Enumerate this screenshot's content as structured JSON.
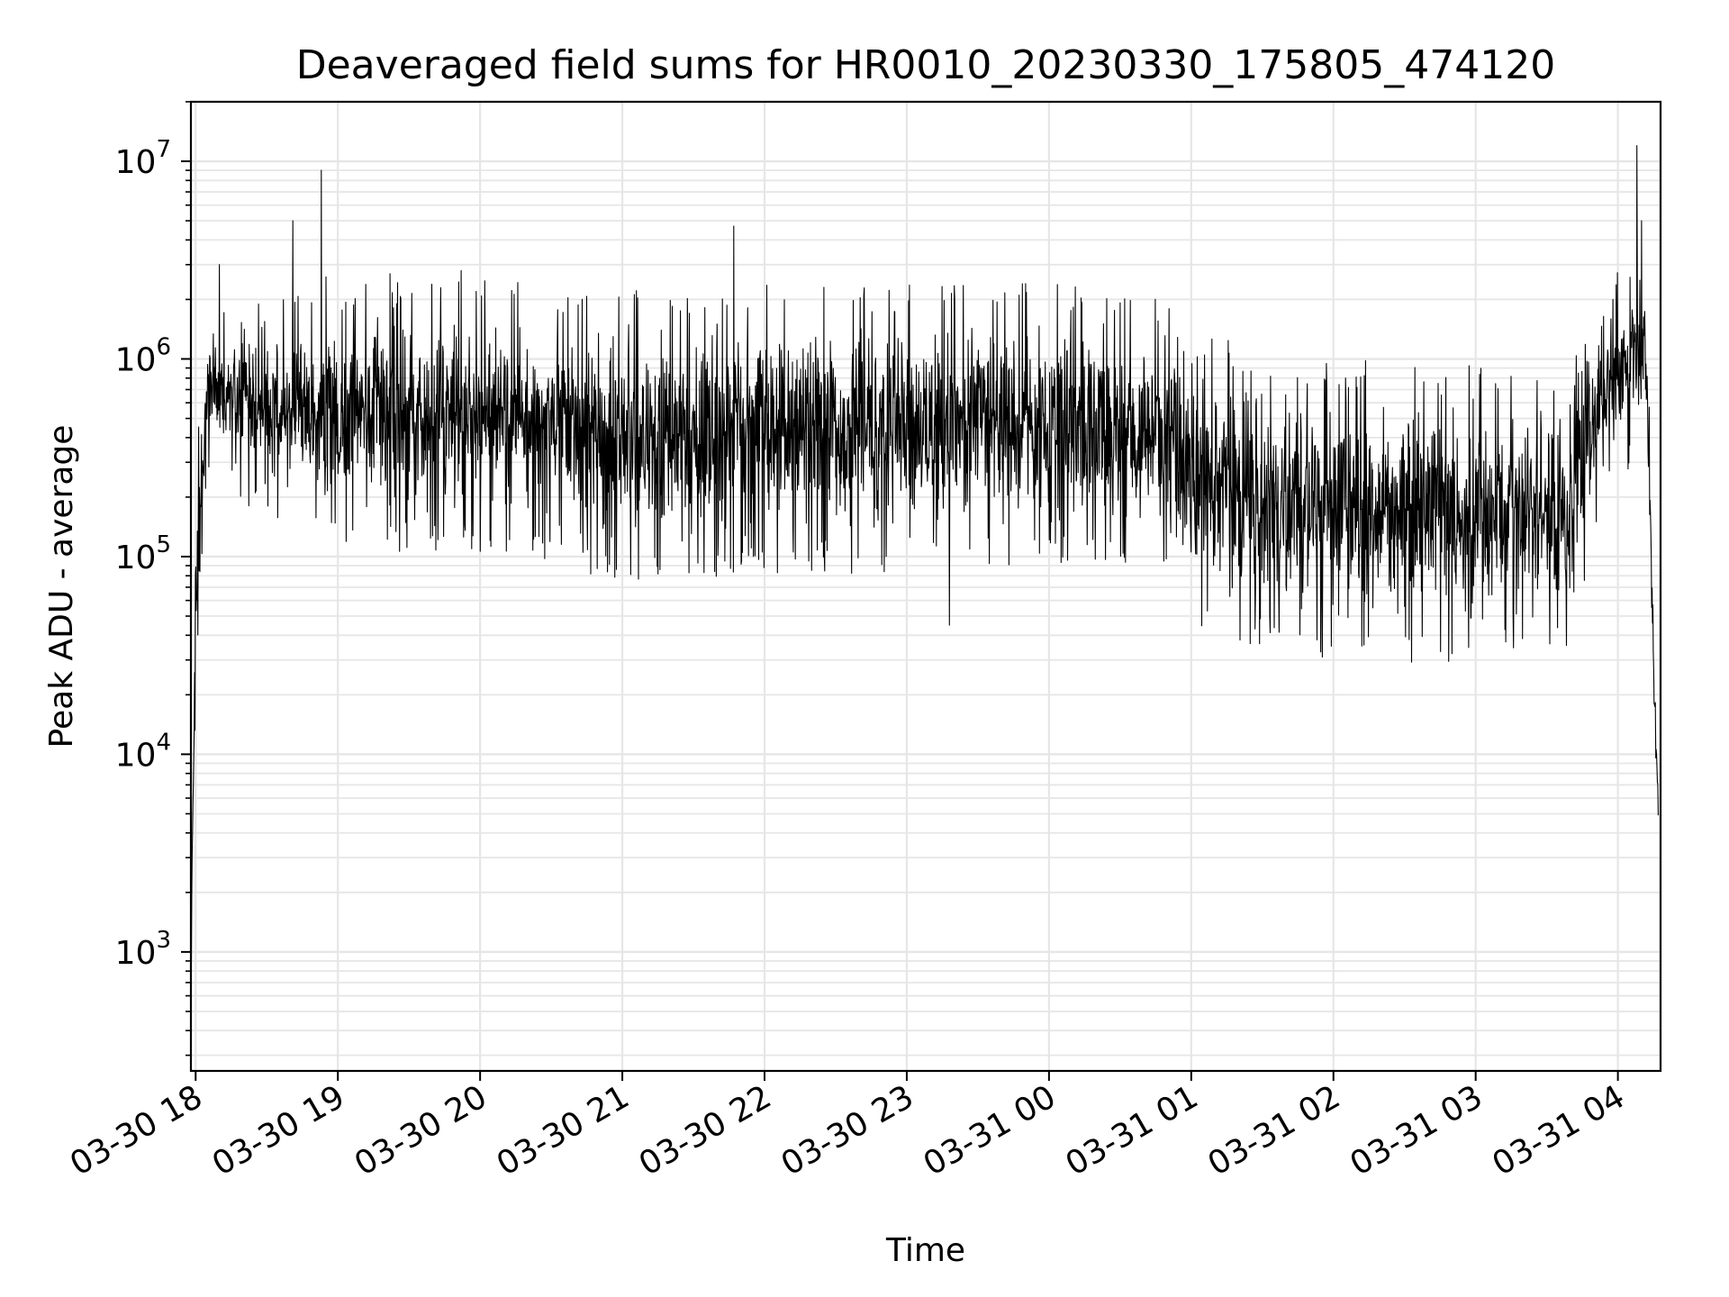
{
  "chart_data": {
    "type": "line",
    "title": "Deaveraged field sums for HR0010_20230330_175805_474120",
    "xlabel": "Time",
    "ylabel": "Peak ADU - average",
    "x_scale": "time",
    "y_scale": "log",
    "xlim": [
      "2023-03-30 17:58",
      "2023-03-31 04:18"
    ],
    "ylim": [
      250,
      20000000
    ],
    "x_ticks": [
      {
        "time": "2023-03-30 18:00",
        "label": "03-30 18"
      },
      {
        "time": "2023-03-30 19:00",
        "label": "03-30 19"
      },
      {
        "time": "2023-03-30 20:00",
        "label": "03-30 20"
      },
      {
        "time": "2023-03-30 21:00",
        "label": "03-30 21"
      },
      {
        "time": "2023-03-30 22:00",
        "label": "03-30 22"
      },
      {
        "time": "2023-03-30 23:00",
        "label": "03-30 23"
      },
      {
        "time": "2023-03-31 00:00",
        "label": "03-31 00"
      },
      {
        "time": "2023-03-31 01:00",
        "label": "03-31 01"
      },
      {
        "time": "2023-03-31 02:00",
        "label": "03-31 02"
      },
      {
        "time": "2023-03-31 03:00",
        "label": "03-31 03"
      },
      {
        "time": "2023-03-31 04:00",
        "label": "03-31 04"
      }
    ],
    "y_ticks": [
      {
        "value": 1000,
        "base": "10",
        "exp": "3"
      },
      {
        "value": 10000,
        "base": "10",
        "exp": "4"
      },
      {
        "value": 100000,
        "base": "10",
        "exp": "5"
      },
      {
        "value": 1000000,
        "base": "10",
        "exp": "6"
      },
      {
        "value": 10000000,
        "base": "10",
        "exp": "7"
      }
    ],
    "grid": true,
    "line_color": "#000000",
    "grid_color": "#e6e6e6",
    "series": [
      {
        "envelope": [
          {
            "t": "2023-03-30 17:58",
            "low": 450,
            "high": 900
          },
          {
            "t": "2023-03-30 18:00",
            "low": 15000,
            "high": 300000
          },
          {
            "t": "2023-03-30 18:05",
            "low": 400000,
            "high": 1200000
          },
          {
            "t": "2023-03-30 18:30",
            "low": 200000,
            "high": 1400000
          },
          {
            "t": "2023-03-30 19:00",
            "low": 150000,
            "high": 1700000
          },
          {
            "t": "2023-03-30 20:00",
            "low": 150000,
            "high": 1800000
          },
          {
            "t": "2023-03-30 21:00",
            "low": 100000,
            "high": 1600000
          },
          {
            "t": "2023-03-30 22:00",
            "low": 110000,
            "high": 1700000
          },
          {
            "t": "2023-03-30 23:00",
            "low": 120000,
            "high": 1700000
          },
          {
            "t": "2023-03-31 00:00",
            "low": 130000,
            "high": 1800000
          },
          {
            "t": "2023-03-31 00:45",
            "low": 120000,
            "high": 1500000
          },
          {
            "t": "2023-03-31 01:00",
            "low": 60000,
            "high": 1000000
          },
          {
            "t": "2023-03-31 01:30",
            "low": 45000,
            "high": 800000
          },
          {
            "t": "2023-03-31 02:00",
            "low": 40000,
            "high": 700000
          },
          {
            "t": "2023-03-31 03:00",
            "low": 40000,
            "high": 700000
          },
          {
            "t": "2023-03-31 03:40",
            "low": 40000,
            "high": 800000
          },
          {
            "t": "2023-03-31 03:50",
            "low": 200000,
            "high": 1500000
          },
          {
            "t": "2023-03-31 04:05",
            "low": 400000,
            "high": 2500000
          },
          {
            "t": "2023-03-31 04:12",
            "low": 500000,
            "high": 2200000
          },
          {
            "t": "2023-03-31 04:15",
            "low": 20000,
            "high": 40000
          },
          {
            "t": "2023-03-31 04:17",
            "low": 3700,
            "high": 12000
          }
        ],
        "spikes": [
          {
            "t": "2023-03-30 18:10",
            "y": 3000000
          },
          {
            "t": "2023-03-30 18:41",
            "y": 5000000
          },
          {
            "t": "2023-03-30 18:53",
            "y": 9000000
          },
          {
            "t": "2023-03-30 18:55",
            "y": 2600000
          },
          {
            "t": "2023-03-30 19:22",
            "y": 2700000
          },
          {
            "t": "2023-03-30 19:52",
            "y": 2800000
          },
          {
            "t": "2023-03-30 21:47",
            "y": 4700000
          },
          {
            "t": "2023-03-31 04:08",
            "y": 12000000
          },
          {
            "t": "2023-03-31 04:10",
            "y": 5000000
          },
          {
            "t": "2023-03-30 23:18",
            "y": 45000
          }
        ]
      }
    ]
  }
}
